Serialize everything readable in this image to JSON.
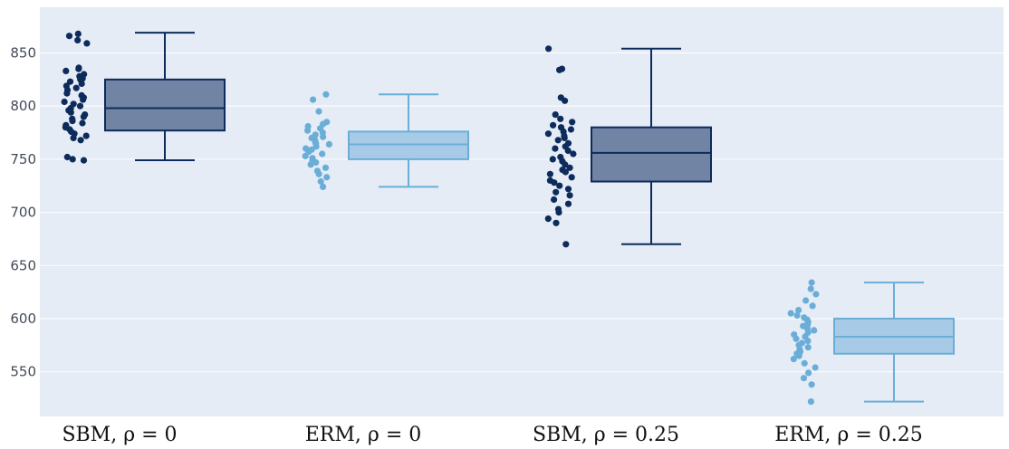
{
  "chart_data": {
    "type": "box",
    "categories": [
      "SBM, ρ = 0",
      "ERM, ρ = 0",
      "SBM, ρ = 0.25",
      "ERM, ρ = 0.25"
    ],
    "ylim": [
      508,
      893
    ],
    "yticks": [
      550,
      600,
      650,
      700,
      750,
      800,
      850
    ],
    "grid": true,
    "colors": {
      "background": "#e5ecf6",
      "grid": "#ffffff",
      "dark_points": "#0d2b5b",
      "dark_box_fill": "#7284a3",
      "dark_line": "#0d2b5b",
      "light_points": "#6aaed8",
      "light_box_fill": "#a7cbe6",
      "light_line": "#6aaed8"
    },
    "boxes": [
      {
        "category": "SBM, ρ = 0",
        "theme": "dark",
        "min": 749,
        "q1": 777,
        "median": 798,
        "q3": 825,
        "max": 869,
        "points": [
          868,
          866,
          862,
          859,
          836,
          835,
          833,
          830,
          828,
          826,
          825,
          823,
          821,
          819,
          817,
          815,
          812,
          810,
          808,
          806,
          804,
          802,
          800,
          798,
          796,
          794,
          792,
          790,
          788,
          786,
          784,
          782,
          780,
          778,
          776,
          774,
          772,
          770,
          768,
          752,
          750,
          749
        ]
      },
      {
        "category": "ERM, ρ = 0",
        "theme": "light",
        "min": 724,
        "q1": 750,
        "median": 764,
        "q3": 776,
        "max": 811,
        "points": [
          811,
          806,
          795,
          785,
          783,
          781,
          779,
          777,
          775,
          773,
          771,
          770,
          768,
          766,
          765,
          764,
          762,
          760,
          759,
          757,
          755,
          753,
          751,
          749,
          747,
          745,
          742,
          739,
          736,
          733,
          729,
          724
        ]
      },
      {
        "category": "SBM, ρ = 0.25",
        "theme": "dark",
        "min": 670,
        "q1": 729,
        "median": 756,
        "q3": 780,
        "max": 854,
        "points": [
          854,
          835,
          834,
          808,
          805,
          792,
          788,
          785,
          782,
          780,
          778,
          776,
          774,
          772,
          770,
          768,
          765,
          762,
          760,
          758,
          755,
          752,
          750,
          748,
          745,
          742,
          740,
          738,
          736,
          733,
          730,
          728,
          725,
          722,
          719,
          716,
          712,
          708,
          703,
          700,
          694,
          690,
          670
        ]
      },
      {
        "category": "ERM, ρ = 0.25",
        "theme": "light",
        "min": 522,
        "q1": 567,
        "median": 583,
        "q3": 600,
        "max": 634,
        "points": [
          634,
          628,
          623,
          617,
          612,
          608,
          605,
          603,
          601,
          599,
          597,
          595,
          593,
          591,
          589,
          587,
          585,
          583,
          581,
          579,
          577,
          575,
          573,
          571,
          569,
          567,
          565,
          562,
          558,
          554,
          549,
          544,
          538,
          522
        ]
      }
    ]
  }
}
